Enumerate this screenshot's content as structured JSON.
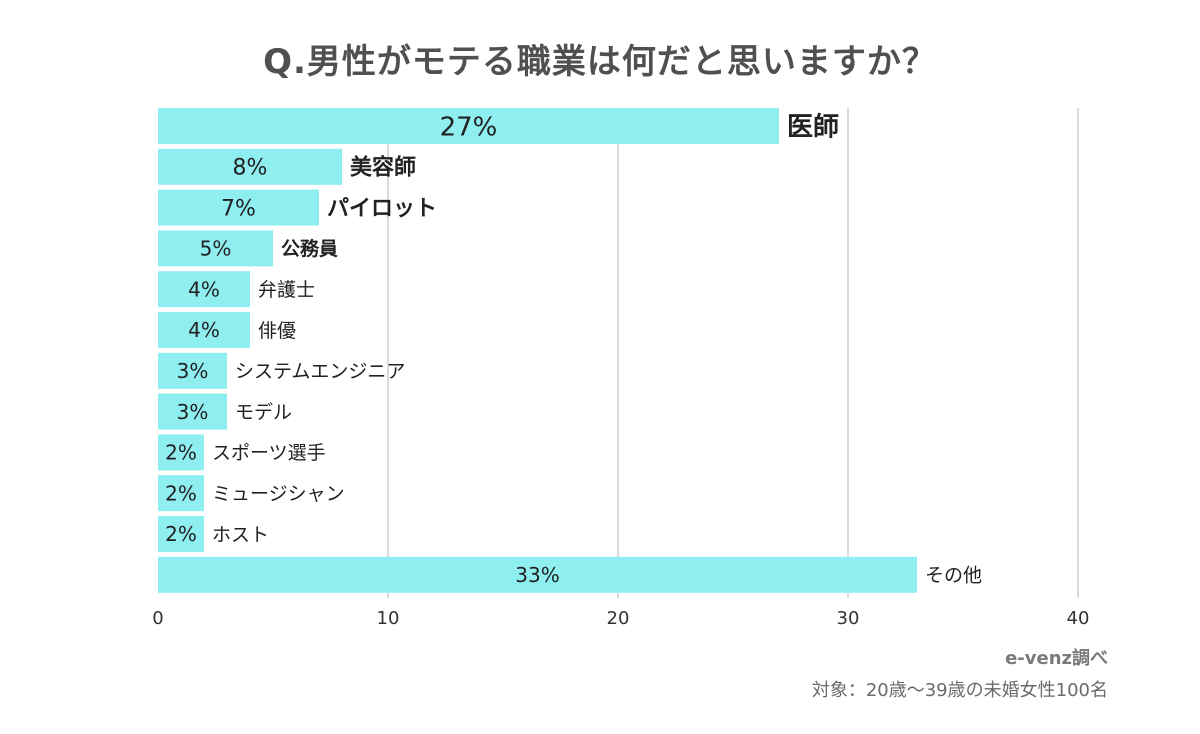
{
  "title": "Q.男性がモテる職業は何だと思いますか？",
  "source": "e-venz調べ",
  "note": "対象：20歳〜39歳の未婚女性100名",
  "colors": {
    "bar": "#8eeef0",
    "grid": "#cfcfcf",
    "text": "#222222",
    "muted": "#707070"
  },
  "chart_data": {
    "type": "bar",
    "orientation": "horizontal",
    "title": "Q.男性がモテる職業は何だと思いますか？",
    "xlim": [
      0,
      40
    ],
    "xticks": [
      0,
      10,
      20,
      30,
      40
    ],
    "grid": true,
    "categories": [
      "医師",
      "美容師",
      "パイロット",
      "公務員",
      "弁護士",
      "俳優",
      "システムエンジニア",
      "モデル",
      "スポーツ選手",
      "ミュージシャン",
      "ホスト",
      "その他"
    ],
    "values": [
      27,
      8,
      7,
      5,
      4,
      4,
      3,
      3,
      2,
      2,
      2,
      33
    ],
    "value_labels": [
      "27%",
      "8%",
      "7%",
      "5%",
      "4%",
      "4%",
      "3%",
      "3%",
      "2%",
      "2%",
      "2%",
      "33%"
    ]
  }
}
